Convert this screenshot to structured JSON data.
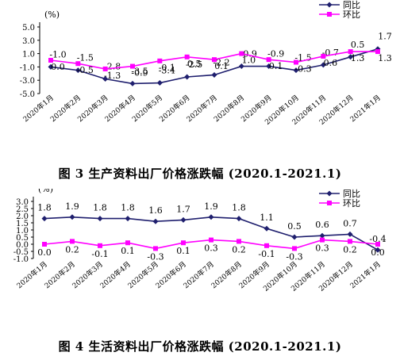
{
  "chart_data": [
    {
      "type": "line",
      "caption": "图 3  生产资料出厂价格涨跌幅 (2020.1-2021.1)",
      "ylabel": "(%)",
      "ylim": [
        -5.0,
        5.0
      ],
      "yticks": [
        "5.0",
        "3.0",
        "1.0",
        "-1.0",
        "-3.0",
        "-5.0"
      ],
      "ytick_values": [
        5,
        3,
        1,
        -1,
        -3,
        -5
      ],
      "categories": [
        "2020年1月",
        "2020年2月",
        "2020年3月",
        "2020年4月",
        "2020年5月",
        "2020年6月",
        "2020年7月",
        "2020年8月",
        "2020年9月",
        "2020年10月",
        "2020年11月",
        "2020年12月",
        "2021年1月"
      ],
      "series": [
        {
          "name": "同比",
          "color": "#1f1f6e",
          "marker": "diamond",
          "values": [
            -1.0,
            -1.5,
            -2.8,
            -3.5,
            -3.4,
            -2.5,
            -2.2,
            -0.9,
            -0.9,
            -1.5,
            -0.7,
            0.5,
            1.7
          ],
          "labels": [
            "-1.0",
            "-1.5",
            "-2.8",
            "-3.5",
            "-3.4",
            "-2.5",
            "-2.2",
            "-0.9",
            "-0.9",
            "-1.5",
            "-0.7",
            "0.5",
            "1.7"
          ]
        },
        {
          "name": "环比",
          "color": "#ff00ff",
          "marker": "square",
          "values": [
            0.0,
            -0.5,
            -1.3,
            -0.9,
            -0.1,
            0.5,
            0.1,
            1.0,
            0.1,
            -0.3,
            0.6,
            1.3,
            1.3
          ],
          "labels": [
            "0.0",
            "-0.5",
            "-1.3",
            "-0.9",
            "-0.1",
            "0.5",
            "0.1",
            "1.0",
            "0.1",
            "-0.3",
            "0.6",
            "1.3",
            "1.3"
          ]
        }
      ]
    },
    {
      "type": "line",
      "caption": "图 4  生活资料出厂价格涨跌幅 (2020.1-2021.1)",
      "ylabel": "(%)",
      "ylim": [
        -1.0,
        3.0
      ],
      "yticks": [
        "3.0",
        "2.5",
        "2.0",
        "1.5",
        "1.0",
        "0.5",
        "0.0",
        "-0.5",
        "-1.0"
      ],
      "ytick_values": [
        3,
        2.5,
        2,
        1.5,
        1,
        0.5,
        0,
        -0.5,
        -1
      ],
      "categories": [
        "2020年1月",
        "2020年2月",
        "2020年3月",
        "2020年4月",
        "2020年5月",
        "2020年6月",
        "2020年7月",
        "2020年8月",
        "2020年9月",
        "2020年10月",
        "2020年11月",
        "2020年12月",
        "2021年1月"
      ],
      "series": [
        {
          "name": "同比",
          "color": "#1f1f6e",
          "marker": "diamond",
          "values": [
            1.8,
            1.9,
            1.8,
            1.8,
            1.6,
            1.7,
            1.9,
            1.8,
            1.1,
            0.5,
            0.6,
            0.7,
            -0.4
          ],
          "labels": [
            "1.8",
            "1.9",
            "1.8",
            "1.8",
            "1.6",
            "1.7",
            "1.9",
            "1.8",
            "1.1",
            "0.5",
            "0.6",
            "0.7",
            "-0.4"
          ]
        },
        {
          "name": "环比",
          "color": "#ff00ff",
          "marker": "square",
          "values": [
            0.0,
            0.2,
            -0.1,
            0.1,
            -0.3,
            0.1,
            0.3,
            0.2,
            -0.1,
            -0.3,
            0.3,
            0.2,
            0.0
          ],
          "labels": [
            "0.0",
            "0.2",
            "-0.1",
            "0.1",
            "-0.3",
            "0.1",
            "0.3",
            "0.2",
            "-0.1",
            "-0.3",
            "0.3",
            "0.2",
            "0.0"
          ]
        }
      ]
    }
  ]
}
